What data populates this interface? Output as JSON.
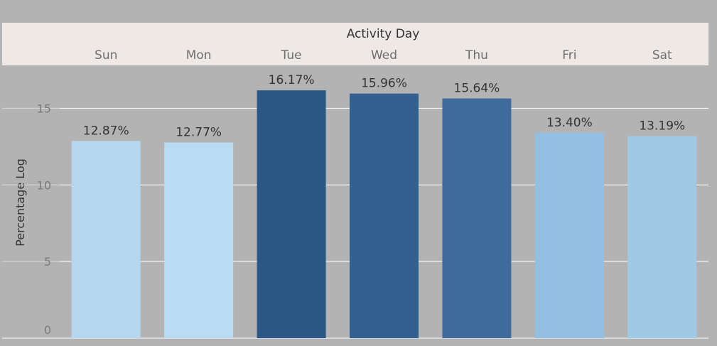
{
  "chart_data": {
    "type": "bar",
    "title": "Activity Day",
    "xlabel": "Activity Day",
    "ylabel": "Percentage Log",
    "categories": [
      "Sun",
      "Mon",
      "Tue",
      "Wed",
      "Thu",
      "Fri",
      "Sat"
    ],
    "values": [
      12.87,
      12.77,
      16.17,
      15.96,
      15.64,
      13.4,
      13.19
    ],
    "data_labels": [
      "12.87%",
      "12.77%",
      "16.17%",
      "15.96%",
      "15.64%",
      "13.40%",
      "13.19%"
    ],
    "bar_colors": [
      "#b4d6ee",
      "#b9dcf2",
      "#2a5784",
      "#32608f",
      "#3f6b9c",
      "#93bfe0",
      "#a0c9e6"
    ],
    "y_ticks": [
      0,
      5,
      10,
      15
    ],
    "y_tick_labels": [
      "0",
      "5",
      "10",
      "15"
    ],
    "ylim": [
      0,
      17.8
    ],
    "grid": true,
    "legend": "none"
  },
  "colors": {
    "background": "#b3b3b3",
    "header_band": "#efe9e6",
    "gridline": "#ffffff",
    "text_dark": "#333333",
    "text_muted": "#6e6e6e"
  }
}
